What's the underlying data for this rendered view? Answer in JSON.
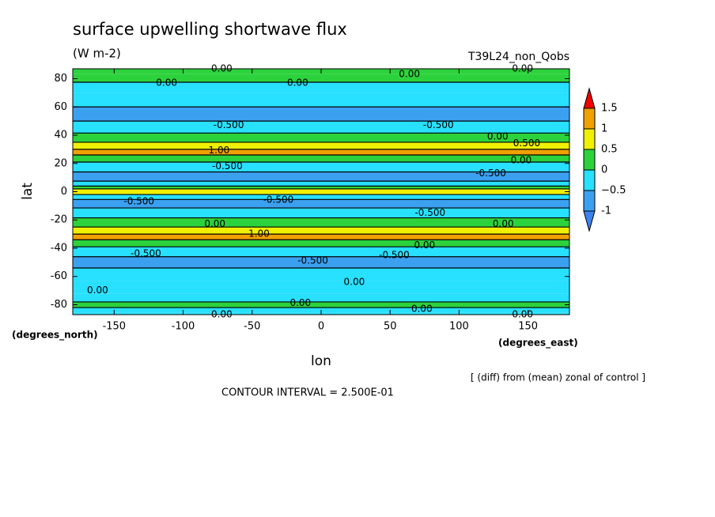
{
  "chart_data": {
    "type": "contour",
    "title": "surface upwelling shortwave flux",
    "subtitle": "(W m-2)",
    "run_name": "T39L24_non_Qobs",
    "x_label": "lon",
    "y_label": "lat",
    "x_unit": "(degrees_east)",
    "y_unit": "(degrees_north)",
    "note": "[ (diff) from (mean) zonal of control ]",
    "contour_interval": "CONTOUR INTERVAL = 2.500E-01",
    "xlim": [
      -180,
      180
    ],
    "ylim": [
      -87,
      87
    ],
    "xticks": [
      -150,
      -100,
      -50,
      0,
      50,
      100,
      150
    ],
    "yticks": [
      80,
      60,
      40,
      20,
      0,
      -20,
      -40,
      -60,
      -80
    ],
    "lat": [
      87,
      80,
      75,
      65,
      55,
      45,
      38,
      32,
      28,
      24,
      18,
      10,
      5,
      3,
      1,
      -1,
      -3,
      -8,
      -15,
      -22,
      -28,
      -32,
      -36,
      -42,
      -50,
      -58,
      -68,
      -76,
      -80,
      -84,
      -87
    ],
    "values": [
      0.2,
      0.1,
      -0.2,
      -0.3,
      -0.6,
      -0.4,
      0.2,
      0.7,
      1.1,
      0.3,
      -0.3,
      -0.6,
      -0.3,
      0.2,
      0.7,
      0.7,
      -0.3,
      -0.6,
      -0.5,
      0.1,
      0.7,
      1.1,
      0.3,
      -0.3,
      -0.6,
      -0.3,
      -0.2,
      -0.1,
      0.2,
      -0.1,
      -0.1
    ],
    "levels": [
      -1,
      {
        "value": -0.5,
        "label": "−0.5"
      },
      0,
      0.5,
      1,
      1.5
    ],
    "colors": [
      "#3c82f0",
      "#3ca0f0",
      "#28e0ff",
      "#2cd23c",
      "#f0f000",
      "#f0a000",
      "#f00000"
    ],
    "contour_labels": [
      {
        "text": "0.00",
        "lon": -72,
        "lat": 87
      },
      {
        "text": "0.00",
        "lon": -112,
        "lat": 77
      },
      {
        "text": "0.00",
        "lon": -17,
        "lat": 77
      },
      {
        "text": "0.00",
        "lon": 64,
        "lat": 83
      },
      {
        "text": "0.00",
        "lon": 146,
        "lat": 87
      },
      {
        "text": "-0.500",
        "lon": -67,
        "lat": 47
      },
      {
        "text": "-0.500",
        "lon": 85,
        "lat": 47
      },
      {
        "text": "0.00",
        "lon": 128,
        "lat": 39
      },
      {
        "text": "0.500",
        "lon": 149,
        "lat": 34
      },
      {
        "text": "1.00",
        "lon": -74,
        "lat": 29
      },
      {
        "text": "-0.500",
        "lon": -68,
        "lat": 18
      },
      {
        "text": "-0.500",
        "lon": 123,
        "lat": 13
      },
      {
        "text": "0.00",
        "lon": 145,
        "lat": 22
      },
      {
        "text": "-0.500",
        "lon": -132,
        "lat": -7
      },
      {
        "text": "-0.500",
        "lon": -31,
        "lat": -6
      },
      {
        "text": "-0.500",
        "lon": 79,
        "lat": -15
      },
      {
        "text": "0.00",
        "lon": -77,
        "lat": -23
      },
      {
        "text": "1.00",
        "lon": -45,
        "lat": -30
      },
      {
        "text": "0.00",
        "lon": 132,
        "lat": -23
      },
      {
        "text": "-0.500",
        "lon": -127,
        "lat": -44
      },
      {
        "text": "-0.500",
        "lon": -6,
        "lat": -49
      },
      {
        "text": "-0.500",
        "lon": 53,
        "lat": -45
      },
      {
        "text": "0.00",
        "lon": 75,
        "lat": -38
      },
      {
        "text": "0.00",
        "lon": 24,
        "lat": -64
      },
      {
        "text": "0.00",
        "lon": -162,
        "lat": -70
      },
      {
        "text": "0.00",
        "lon": -15,
        "lat": -79
      },
      {
        "text": "0.00",
        "lon": 73,
        "lat": -83
      },
      {
        "text": "0.00",
        "lon": 146,
        "lat": -87
      },
      {
        "text": "0.00",
        "lon": -72,
        "lat": -87
      }
    ]
  }
}
